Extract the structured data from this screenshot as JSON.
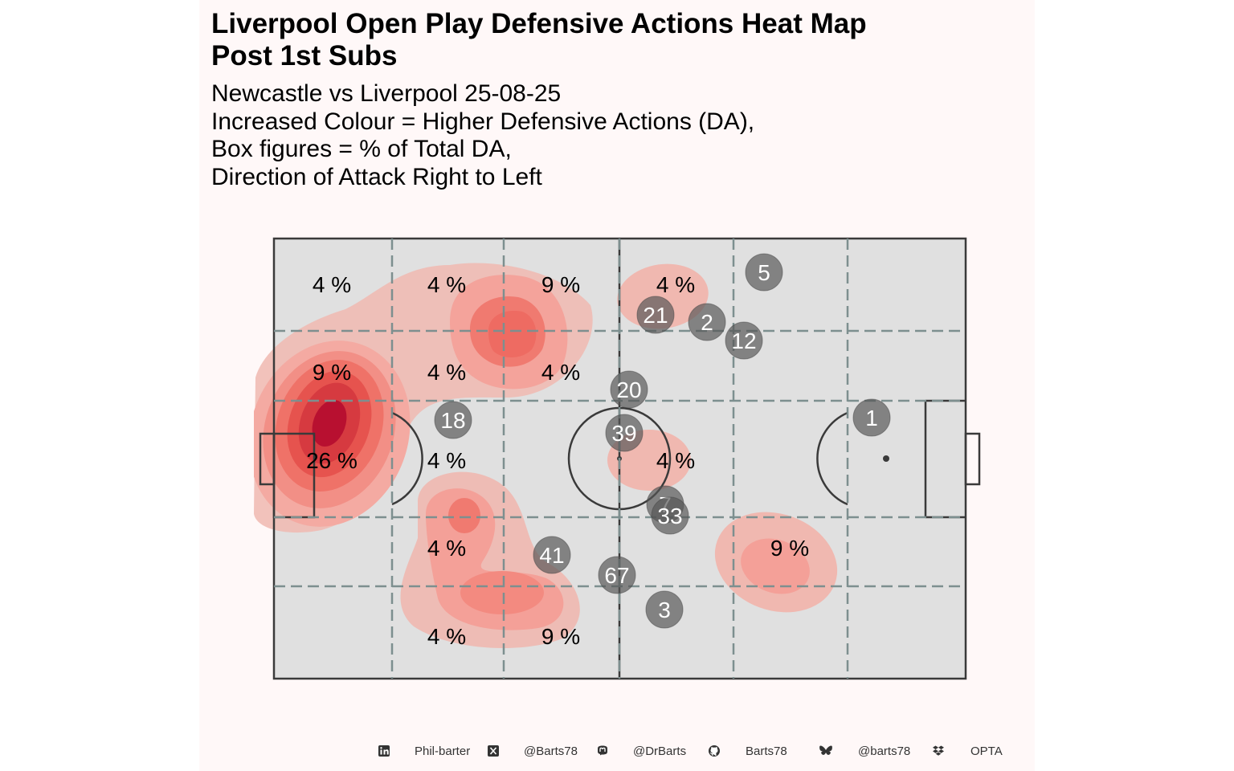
{
  "title_lines": [
    "Liverpool  Open Play Defensive Actions Heat Map",
    "Post 1st Subs"
  ],
  "subtitle_lines": [
    "Newcastle vs Liverpool 25-08-25",
    "Increased Colour = Higher Defensive Actions (DA),",
    "Box figures = % of Total DA,",
    "Direction of Attack Right to Left"
  ],
  "colors": {
    "panel_bg": "#fff8f8",
    "pitch_fill": "#e0e0e0",
    "pitch_lines": "#3a3a3a",
    "zone_lines": "#7d8f8f",
    "heat_low": "#f0b8b0",
    "heat_high": "#b81030",
    "player_marker": "#555555"
  },
  "zone_percentages": [
    {
      "text": "4 %"
    },
    {
      "text": "4 %"
    },
    {
      "text": "9 %"
    },
    {
      "text": "4 %"
    },
    {
      "text": "9 %"
    },
    {
      "text": "4 %"
    },
    {
      "text": "4 %"
    },
    {
      "text": "26 %"
    },
    {
      "text": "4 %"
    },
    {
      "text": "4 %"
    },
    {
      "text": "4 %"
    },
    {
      "text": "9 %"
    },
    {
      "text": "4 %"
    },
    {
      "text": "9 %"
    }
  ],
  "players": [
    {
      "number": "5"
    },
    {
      "number": "21"
    },
    {
      "number": "2"
    },
    {
      "number": "12"
    },
    {
      "number": "20"
    },
    {
      "number": "18"
    },
    {
      "number": "39"
    },
    {
      "number": "1"
    },
    {
      "number": "7"
    },
    {
      "number": "33"
    },
    {
      "number": "41"
    },
    {
      "number": "67"
    },
    {
      "number": "3"
    }
  ],
  "footer": [
    {
      "icon": "linkedin-icon",
      "text": "Phil-barter"
    },
    {
      "icon": "x-twitter-icon",
      "text": "@Barts78"
    },
    {
      "icon": "mastodon-icon",
      "text": "@DrBarts"
    },
    {
      "icon": "github-icon",
      "text": "Barts78"
    },
    {
      "icon": "bluesky-icon",
      "text": "@barts78"
    },
    {
      "icon": "dropbox-icon",
      "text": "OPTA"
    }
  ]
}
